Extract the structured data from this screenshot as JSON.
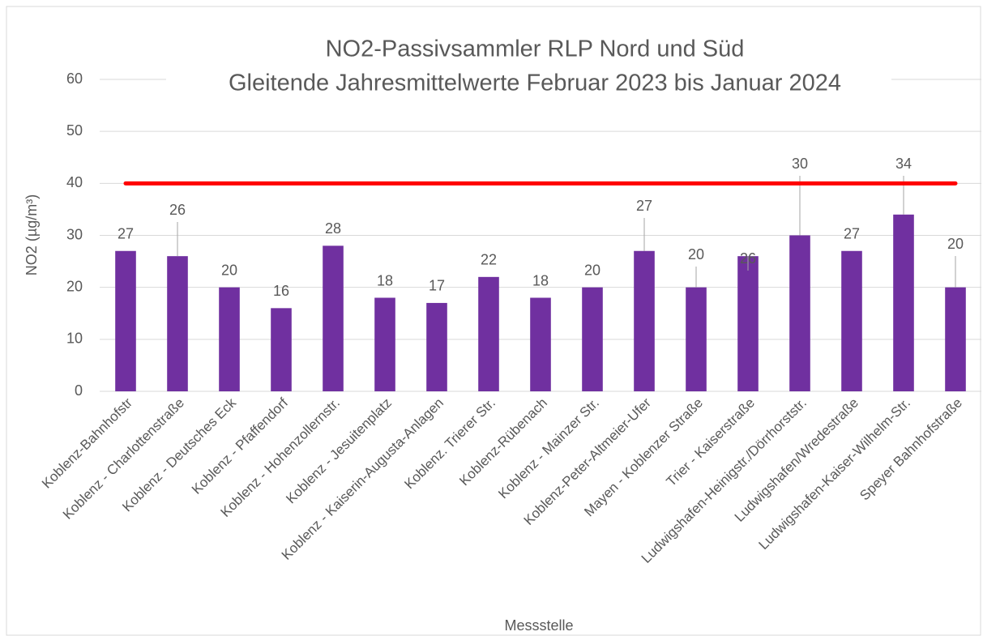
{
  "chart_data": {
    "type": "bar",
    "title": "NO2-Passivsammler RLP Nord und Süd",
    "subtitle": "Gleitende Jahresmittelwerte Februar 2023 bis Januar 2024",
    "x_label": "Messstelle",
    "y_label": "NO2 (µg/m³)",
    "categories": [
      "Koblenz-Bahnhofstr",
      "Koblenz - Charlottenstraße",
      "Koblenz - Deutsches Eck",
      "Koblenz - Pfaffendorf",
      "Koblenz - Hohenzollernstr.",
      "Koblenz - Jesuitenplatz",
      "Koblenz - Kaiserin-Augusta-Anlagen",
      "Koblenz. Trierer Str.",
      "Koblenz-Rübenach",
      "Koblenz - Mainzer Str.",
      "Koblenz-Peter-Altmeier-Ufer",
      "Mayen - Koblenzer Straße",
      "Trier - Kaiserstraße",
      "Ludwigshafen-Heinigstr./Dörrhorststr.",
      "Ludwigshafen/Wredestraße",
      "Ludwigshafen-Kaiser-Wilhelm-Str.",
      "Speyer Bahnhofstraße"
    ],
    "values": [
      27,
      26,
      20,
      16,
      28,
      18,
      17,
      22,
      18,
      20,
      27,
      20,
      26,
      30,
      27,
      34,
      20
    ],
    "color": "#7030a0",
    "reference_line": {
      "value": 40,
      "color": "#ff0000"
    },
    "ylim": [
      0,
      60
    ],
    "yticks": [
      0,
      10,
      20,
      30,
      40,
      50,
      60
    ],
    "grid": true
  }
}
